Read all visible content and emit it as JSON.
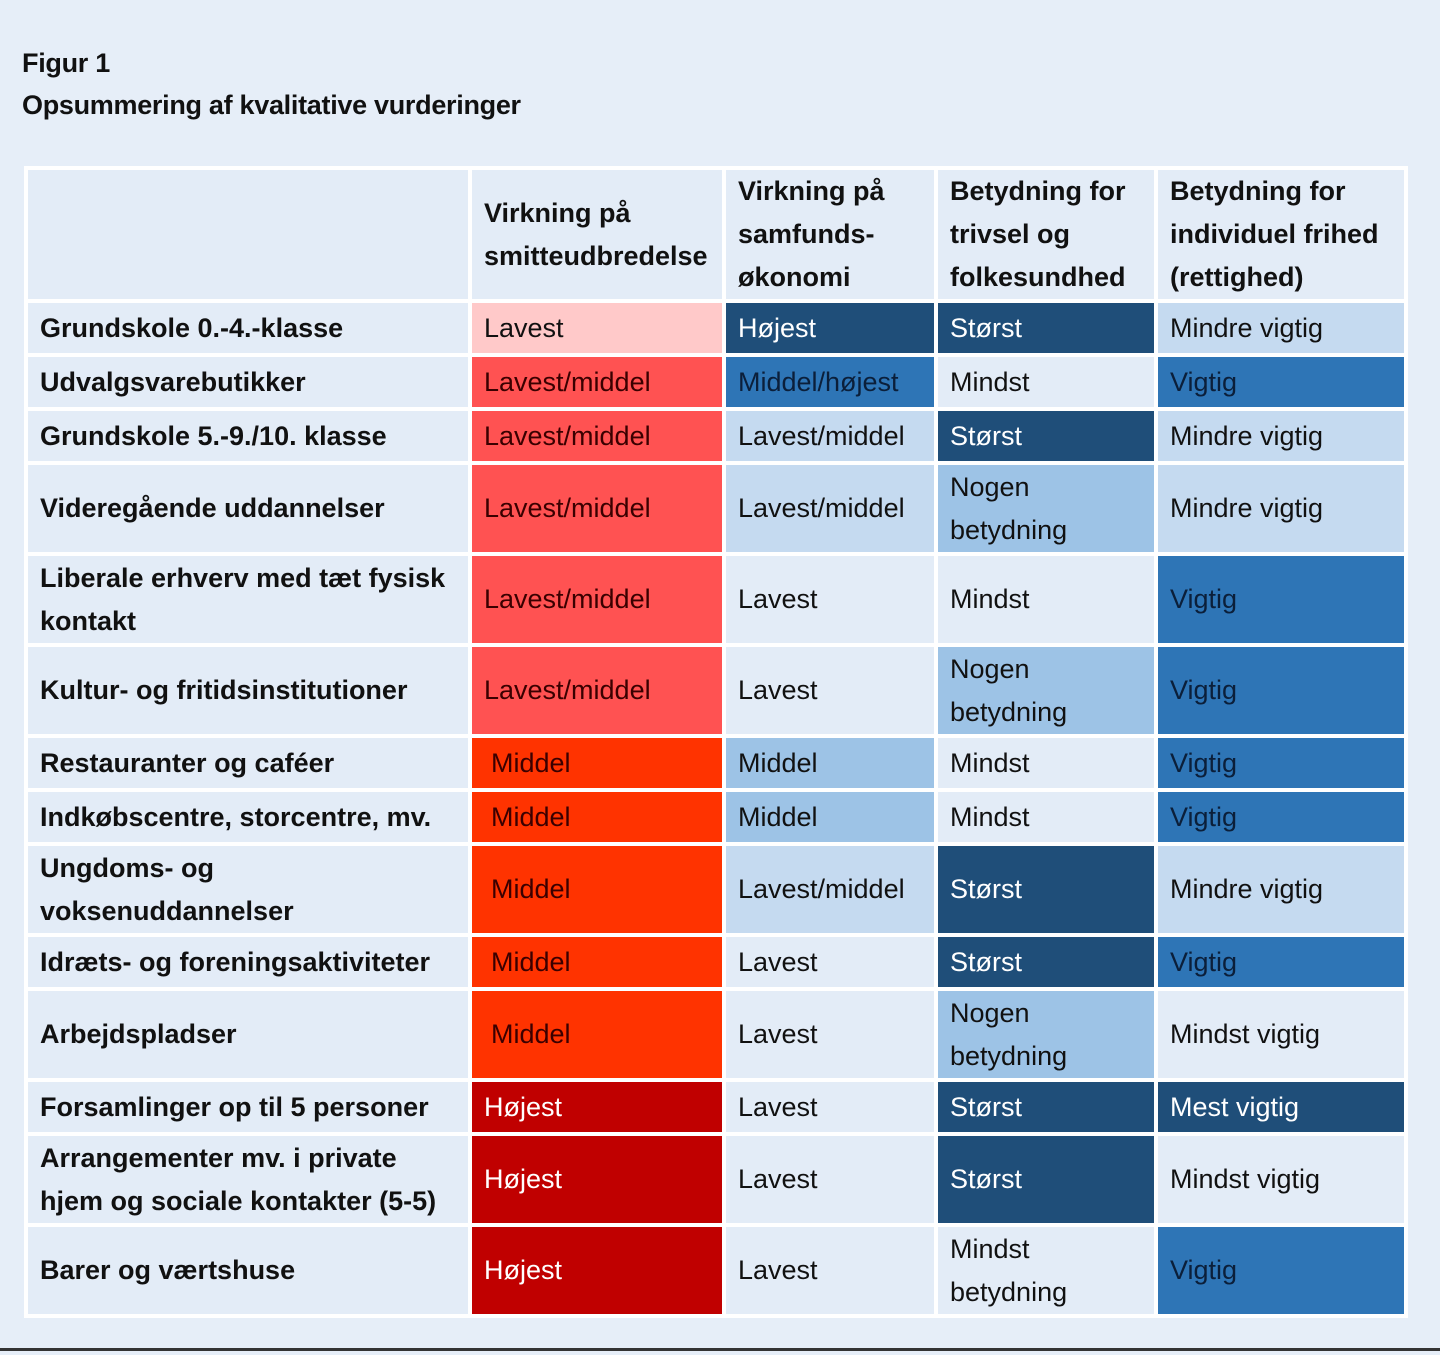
{
  "figure": {
    "label": "Figur 1",
    "title": "Opsummering af kvalitative vurderinger"
  },
  "colors": {
    "lavest_red": "#ffc9c9",
    "lavest_middel_red": "#ff5252",
    "middel_red": "#ff3300",
    "hojest_red": "#c00000",
    "dark_blue": "#1f4e79",
    "mid_blue": "#2e75b6",
    "light_blue": "#9dc3e6",
    "pale_blue": "#c5daf0",
    "neutral": "#e3ecf7"
  },
  "table": {
    "headers": [
      "",
      "Virkning på smitteudbredelse",
      "Virkning på samfunds-økonomi",
      "Betydning for trivsel og folkesundhed",
      "Betydning for individuel frihed (rettighed)"
    ],
    "rows": [
      {
        "label": "Grundskole 0.-4.-klasse",
        "cells": [
          {
            "text": "Lavest",
            "level": "lavest_red"
          },
          {
            "text": "Højest",
            "level": "dark_blue"
          },
          {
            "text": "Størst",
            "level": "dark_blue"
          },
          {
            "text": "Mindre vigtig",
            "level": "pale_blue"
          }
        ]
      },
      {
        "label": "Udvalgsvarebutikker",
        "cells": [
          {
            "text": "Lavest/middel",
            "level": "lavest_middel_red"
          },
          {
            "text": "Middel/højest",
            "level": "mid_blue"
          },
          {
            "text": "Mindst",
            "level": "neutral"
          },
          {
            "text": "Vigtig",
            "level": "mid_blue"
          }
        ]
      },
      {
        "label": "Grundskole 5.-9./10. klasse",
        "cells": [
          {
            "text": "Lavest/middel",
            "level": "lavest_middel_red"
          },
          {
            "text": "Lavest/middel",
            "level": "pale_blue"
          },
          {
            "text": "Størst",
            "level": "dark_blue"
          },
          {
            "text": "Mindre vigtig",
            "level": "pale_blue"
          }
        ]
      },
      {
        "label": "Videregående uddannelser",
        "cells": [
          {
            "text": "Lavest/middel",
            "level": "lavest_middel_red"
          },
          {
            "text": "Lavest/middel",
            "level": "pale_blue"
          },
          {
            "text": "Nogen betydning",
            "level": "light_blue"
          },
          {
            "text": "Mindre vigtig",
            "level": "pale_blue"
          }
        ]
      },
      {
        "label": "Liberale erhverv med tæt fysisk kontakt",
        "cells": [
          {
            "text": "Lavest/middel",
            "level": "lavest_middel_red"
          },
          {
            "text": "Lavest",
            "level": "neutral"
          },
          {
            "text": "Mindst",
            "level": "neutral"
          },
          {
            "text": "Vigtig",
            "level": "mid_blue"
          }
        ]
      },
      {
        "label": "Kultur- og fritidsinstitutioner",
        "cells": [
          {
            "text": "Lavest/middel",
            "level": "lavest_middel_red"
          },
          {
            "text": "Lavest",
            "level": "neutral"
          },
          {
            "text": "Nogen betydning",
            "level": "light_blue"
          },
          {
            "text": "Vigtig",
            "level": "mid_blue"
          }
        ]
      },
      {
        "label": "Restauranter og caféer",
        "cells": [
          {
            "text": "Middel",
            "level": "middel_red"
          },
          {
            "text": "Middel",
            "level": "light_blue"
          },
          {
            "text": "Mindst",
            "level": "neutral"
          },
          {
            "text": "Vigtig",
            "level": "mid_blue"
          }
        ]
      },
      {
        "label": "Indkøbscentre, storcentre, mv.",
        "cells": [
          {
            "text": "Middel",
            "level": "middel_red"
          },
          {
            "text": "Middel",
            "level": "light_blue"
          },
          {
            "text": "Mindst",
            "level": "neutral"
          },
          {
            "text": "Vigtig",
            "level": "mid_blue"
          }
        ]
      },
      {
        "label": "Ungdoms- og voksenuddannelser",
        "cells": [
          {
            "text": "Middel",
            "level": "middel_red"
          },
          {
            "text": "Lavest/middel",
            "level": "pale_blue"
          },
          {
            "text": "Størst",
            "level": "dark_blue"
          },
          {
            "text": "Mindre vigtig",
            "level": "pale_blue"
          }
        ]
      },
      {
        "label": "Idræts- og foreningsaktiviteter",
        "cells": [
          {
            "text": "Middel",
            "level": "middel_red"
          },
          {
            "text": "Lavest",
            "level": "neutral"
          },
          {
            "text": "Størst",
            "level": "dark_blue"
          },
          {
            "text": "Vigtig",
            "level": "mid_blue"
          }
        ]
      },
      {
        "label": "Arbejdspladser",
        "cells": [
          {
            "text": "Middel",
            "level": "middel_red"
          },
          {
            "text": "Lavest",
            "level": "neutral"
          },
          {
            "text": "Nogen betydning",
            "level": "light_blue"
          },
          {
            "text": "Mindst vigtig",
            "level": "neutral"
          }
        ]
      },
      {
        "label": "Forsamlinger op til 5 personer",
        "cells": [
          {
            "text": "Højest",
            "level": "hojest_red"
          },
          {
            "text": "Lavest",
            "level": "neutral"
          },
          {
            "text": "Størst",
            "level": "dark_blue"
          },
          {
            "text": "Mest vigtig",
            "level": "dark_blue"
          }
        ]
      },
      {
        "label": "Arrangementer mv. i private hjem og sociale kontakter (5-5)",
        "cells": [
          {
            "text": "Højest",
            "level": "hojest_red"
          },
          {
            "text": "Lavest",
            "level": "neutral"
          },
          {
            "text": "Størst",
            "level": "dark_blue"
          },
          {
            "text": "Mindst vigtig",
            "level": "neutral"
          }
        ]
      },
      {
        "label": "Barer og værtshuse",
        "cells": [
          {
            "text": "Højest",
            "level": "hojest_red"
          },
          {
            "text": "Lavest",
            "level": "neutral"
          },
          {
            "text": "Mindst betydning",
            "level": "neutral"
          },
          {
            "text": "Vigtig",
            "level": "mid_blue"
          }
        ]
      }
    ]
  }
}
